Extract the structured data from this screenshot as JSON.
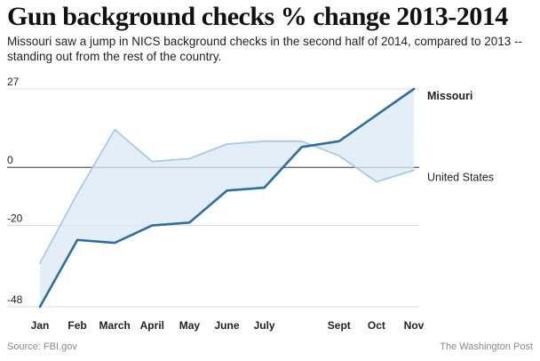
{
  "header": {
    "title": "Gun background checks % change 2013-2014",
    "subtitle": "Missouri saw a jump in NICS background checks in the second half of 2014, compared to 2013 -- standing out from the rest of the country."
  },
  "footer": {
    "source": "Source: FBI.gov",
    "credit": "The Washington Post"
  },
  "colors": {
    "missouri": "#2e6f9e",
    "united_states": "#a9cbe3",
    "fill": "#d9e8f4",
    "gridline": "#dddddd",
    "zero_line": "#333333"
  },
  "chart_data": {
    "type": "line",
    "title": "Gun background checks % change 2013-2014",
    "x": [
      1,
      2,
      3,
      4,
      5,
      6,
      7,
      8,
      9,
      10,
      11
    ],
    "x_tick_labels": [
      {
        "x": 1,
        "label": "Jan"
      },
      {
        "x": 2,
        "label": "Feb"
      },
      {
        "x": 3,
        "label": "March"
      },
      {
        "x": 4,
        "label": "April"
      },
      {
        "x": 5,
        "label": "May"
      },
      {
        "x": 6,
        "label": "June"
      },
      {
        "x": 7,
        "label": "July"
      },
      {
        "x": 9,
        "label": "Sept"
      },
      {
        "x": 10,
        "label": "Oct"
      },
      {
        "x": 11,
        "label": "Nov"
      }
    ],
    "y_ticks": [
      "27",
      "0",
      "-20",
      "-48"
    ],
    "ylim": [
      -48,
      27
    ],
    "grid": true,
    "area_between_series": true,
    "series": [
      {
        "name": "Missouri",
        "values": [
          -48,
          -25,
          -26,
          -20,
          -19,
          -8,
          -7,
          7,
          9,
          18,
          27
        ]
      },
      {
        "name": "United States",
        "values": [
          -33,
          -9,
          13,
          2,
          3,
          8,
          9,
          9,
          4,
          -5,
          -1
        ]
      }
    ]
  }
}
